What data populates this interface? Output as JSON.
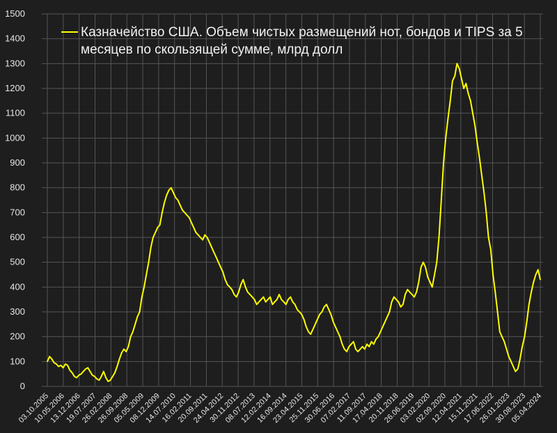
{
  "chart_data": {
    "type": "line",
    "title": "Казначейство США. Объем чистых размещений нот, бондов и TIPS за 5 месяцев по скользящей сумме, млрд долл",
    "legend": {
      "entries": [
        "Казначейство США. Объем чистых размещений нот, бондов и TIPS за 5 месяцев по скользящей сумме, млрд долл"
      ],
      "lines": [
        "Казначейство США. Объем чистых размещений нот, бондов и TIPS за 5",
        "месяцев по скользящей сумме, млрд долл"
      ],
      "placement": "top-center"
    },
    "xlabel": "",
    "ylabel": "",
    "ylim": [
      0,
      1500
    ],
    "yticks": [
      0,
      100,
      200,
      300,
      400,
      500,
      600,
      700,
      800,
      900,
      1000,
      1100,
      1200,
      1300,
      1400,
      1500
    ],
    "xticks": [
      "03.10.2005",
      "10.05.2006",
      "13.12.2006",
      "19.07.2007",
      "26.02.2008",
      "26.09.2008",
      "05.05.2009",
      "08.12.2009",
      "14.07.2010",
      "16.02.2011",
      "20.09.2011",
      "24.04.2012",
      "30.11.2012",
      "08.07.2013",
      "12.02.2014",
      "16.09.2014",
      "23.04.2015",
      "25.11.2015",
      "30.06.2016",
      "07.02.2017",
      "11.09.2017",
      "17.04.2018",
      "20.11.2018",
      "26.06.2019",
      "03.02.2020",
      "02.09.2020",
      "12.04.2021",
      "15.11.2021",
      "17.06.2022",
      "26.01.2023",
      "30.08.2023",
      "05.04.2024"
    ],
    "grid": true,
    "colors": {
      "line": "#ffff00",
      "background": "#1e1e1e",
      "grid": "#555555",
      "text": "#e6e6e6"
    },
    "series": [
      {
        "name": "Казначейство США. Объем чистых размещений нот, бондов и TIPS за 5 месяцев по скользящей сумме, млрд долл",
        "values": [
          100,
          120,
          110,
          95,
          90,
          80,
          85,
          75,
          90,
          85,
          65,
          55,
          40,
          35,
          45,
          50,
          60,
          70,
          75,
          60,
          45,
          40,
          30,
          25,
          40,
          60,
          35,
          20,
          25,
          40,
          55,
          80,
          110,
          135,
          150,
          140,
          160,
          200,
          220,
          250,
          280,
          300,
          360,
          400,
          450,
          500,
          560,
          600,
          620,
          640,
          650,
          700,
          740,
          770,
          790,
          800,
          780,
          760,
          750,
          730,
          710,
          700,
          690,
          680,
          660,
          640,
          620,
          610,
          600,
          590,
          610,
          600,
          580,
          560,
          540,
          520,
          500,
          480,
          460,
          430,
          410,
          400,
          390,
          370,
          360,
          380,
          410,
          430,
          400,
          380,
          370,
          360,
          350,
          330,
          340,
          350,
          360,
          340,
          350,
          360,
          330,
          340,
          350,
          370,
          350,
          340,
          330,
          350,
          360,
          340,
          330,
          310,
          300,
          290,
          270,
          240,
          220,
          210,
          230,
          250,
          270,
          290,
          300,
          320,
          330,
          310,
          290,
          260,
          240,
          220,
          200,
          170,
          150,
          140,
          160,
          170,
          180,
          150,
          140,
          150,
          160,
          150,
          170,
          160,
          180,
          170,
          190,
          200,
          220,
          240,
          260,
          280,
          300,
          340,
          360,
          350,
          340,
          320,
          330,
          370,
          390,
          380,
          370,
          360,
          380,
          420,
          480,
          500,
          480,
          440,
          420,
          400,
          450,
          500,
          600,
          750,
          900,
          1000,
          1080,
          1150,
          1230,
          1250,
          1300,
          1280,
          1240,
          1200,
          1220,
          1180,
          1150,
          1100,
          1050,
          980,
          920,
          850,
          780,
          700,
          600,
          550,
          450,
          380,
          300,
          220,
          200,
          180,
          150,
          120,
          100,
          80,
          60,
          70,
          110,
          160,
          200,
          260,
          330,
          380,
          420,
          450,
          470,
          430
        ]
      }
    ]
  }
}
